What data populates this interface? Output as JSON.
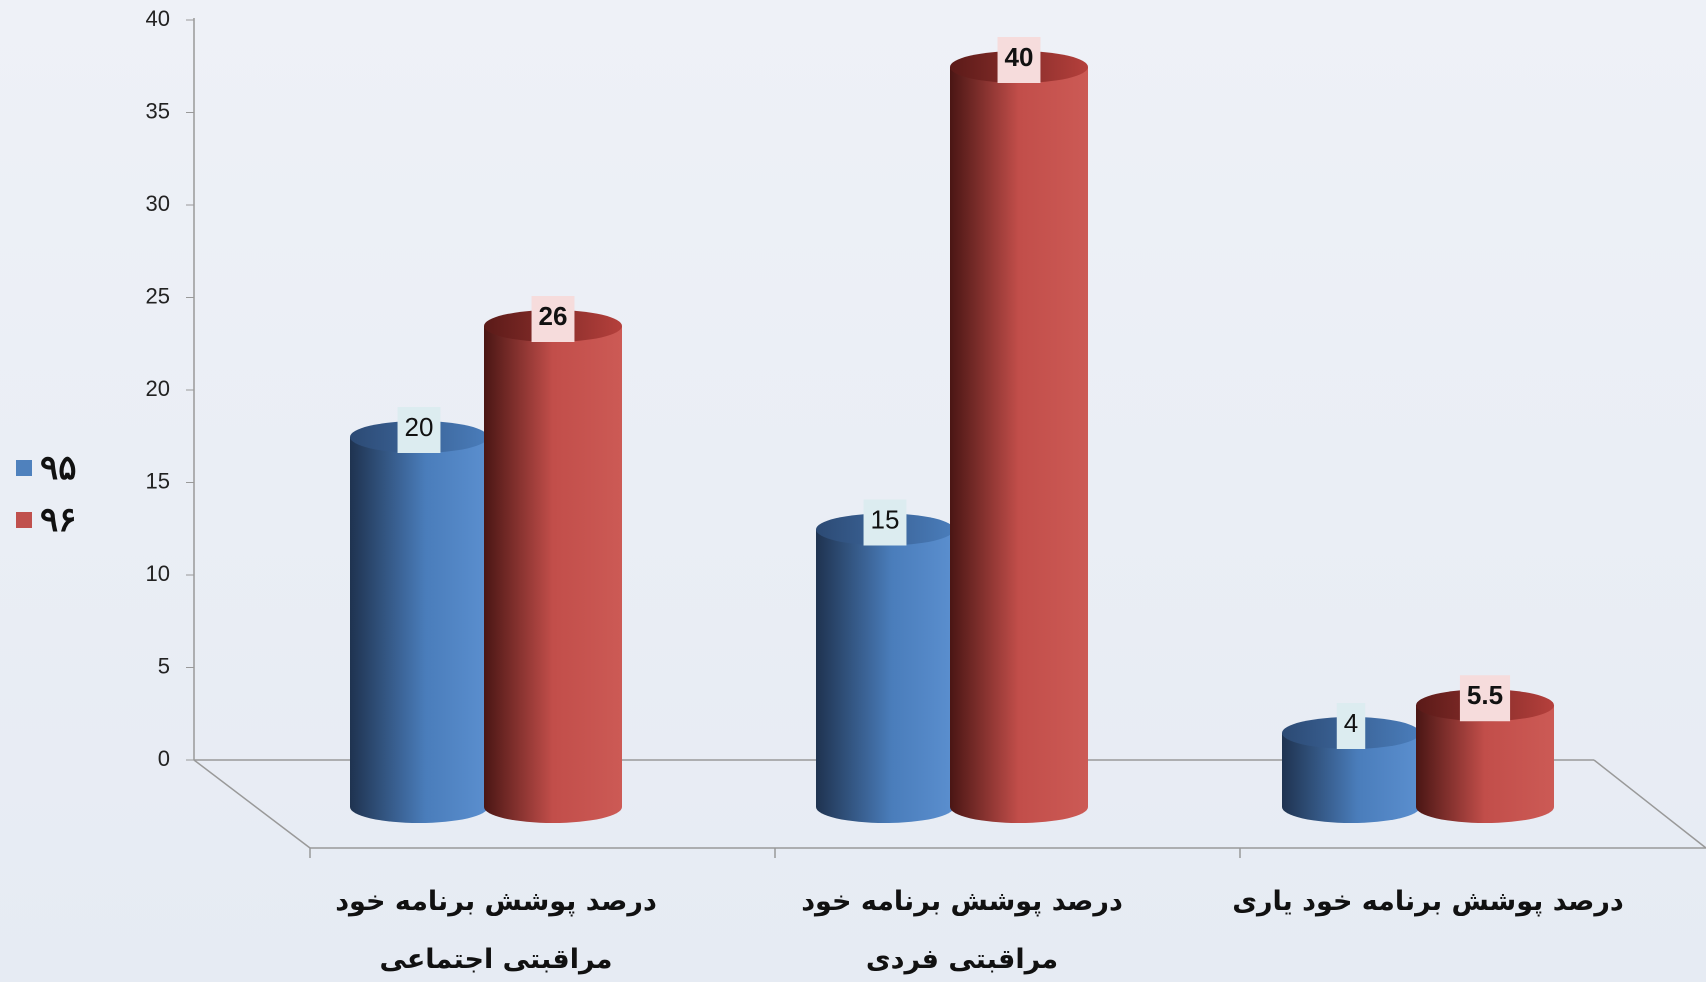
{
  "chart_data": {
    "type": "bar3d",
    "categories": [
      "درصد پوشش برنامه خود مراقبتی اجتماعی",
      "درصد پوشش برنامه خود مراقبتی فردی",
      "درصد پوشش برنامه خود یاری"
    ],
    "series": [
      {
        "name": "۹۵",
        "color": "#4f81bd",
        "values": [
          20,
          15,
          4
        ]
      },
      {
        "name": "۹۶",
        "color": "#c0504d",
        "values": [
          26,
          40,
          5.5
        ]
      }
    ],
    "ylim": [
      0,
      40
    ],
    "yticks": [
      0,
      5,
      10,
      15,
      20,
      25,
      30,
      35,
      40
    ],
    "legend": "left"
  }
}
